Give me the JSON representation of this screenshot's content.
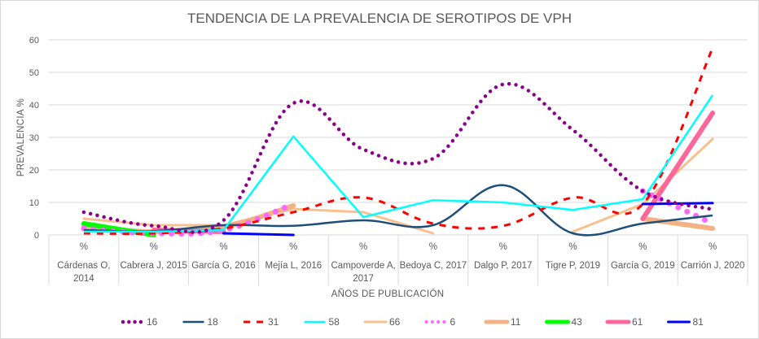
{
  "chart_data": {
    "type": "line",
    "title": "TENDENCIA DE LA PREVALENCIA DE SEROTIPOS DE VPH",
    "xlabel": "AÑOS DE PUBLICACIÓN",
    "ylabel": "PREVALENCIA  %",
    "ylim": [
      0,
      60
    ],
    "yticks": [
      0,
      10,
      20,
      30,
      40,
      50,
      60
    ],
    "grid": true,
    "legend_position": "bottom",
    "category_header": "%",
    "categories": [
      [
        "Cárdenas O,",
        "2014"
      ],
      [
        "Cabrera J, 2015"
      ],
      [
        "García G, 2016"
      ],
      [
        "Mejía L, 2016"
      ],
      [
        "Campoverde A,",
        "2017"
      ],
      [
        "Bedoya C, 2017"
      ],
      [
        "Dalgo P, 2017"
      ],
      [
        "Tigre P, 2019"
      ],
      [
        "García G, 2019"
      ],
      [
        "Carrión J, 2020"
      ]
    ],
    "series": [
      {
        "name": "16",
        "color": "#8B008B",
        "style": "dots",
        "smooth": true,
        "values": [
          7,
          2.8,
          4.5,
          40.5,
          26.3,
          23.5,
          46.3,
          32.3,
          13.5,
          7.8
        ]
      },
      {
        "name": "18",
        "color": "#1F4E79",
        "style": "solid",
        "smooth": true,
        "values": [
          1.5,
          1.2,
          3,
          2.8,
          4.5,
          3,
          15.3,
          0.5,
          3.5,
          6
        ]
      },
      {
        "name": "31",
        "color": "#FF0000",
        "style": "dash",
        "smooth": true,
        "values": [
          0.5,
          0.5,
          2,
          7,
          11.5,
          3.5,
          2.8,
          11.5,
          9.5,
          57.5
        ]
      },
      {
        "name": "58",
        "color": "#00FFFF",
        "style": "solid",
        "smooth": false,
        "values": [
          1,
          1,
          1.5,
          30.3,
          5.5,
          10.7,
          10,
          7.7,
          11,
          43
        ]
      },
      {
        "name": "66",
        "color": "#F8C08F",
        "style": "solid-thick",
        "smooth": false,
        "values": [
          5,
          3,
          3,
          8,
          7,
          0.5,
          null,
          1,
          9.5,
          29.5
        ]
      },
      {
        "name": "6",
        "color": "#FF66FF",
        "style": "bigdots",
        "smooth": true,
        "values": [
          2,
          0.5,
          1.5,
          9.5,
          null,
          null,
          null,
          null,
          13.5,
          3.5
        ]
      },
      {
        "name": "11",
        "color": "#F4B183",
        "style": "heavy",
        "smooth": true,
        "values": [
          2.5,
          1,
          2.5,
          9,
          null,
          null,
          null,
          null,
          5,
          2
        ]
      },
      {
        "name": "43",
        "color": "#00FF00",
        "style": "heavy",
        "smooth": false,
        "values": [
          3.5,
          0,
          null,
          null,
          null,
          null,
          null,
          null,
          null,
          null
        ]
      },
      {
        "name": "61",
        "color": "#FF6699",
        "style": "heavy",
        "smooth": false,
        "values": [
          null,
          1.5,
          1,
          null,
          null,
          null,
          null,
          null,
          5,
          37.5
        ]
      },
      {
        "name": "81",
        "color": "#0000FF",
        "style": "solid-thick",
        "smooth": false,
        "values": [
          null,
          null,
          0.5,
          0,
          null,
          null,
          null,
          null,
          9.5,
          9.8
        ]
      }
    ]
  }
}
